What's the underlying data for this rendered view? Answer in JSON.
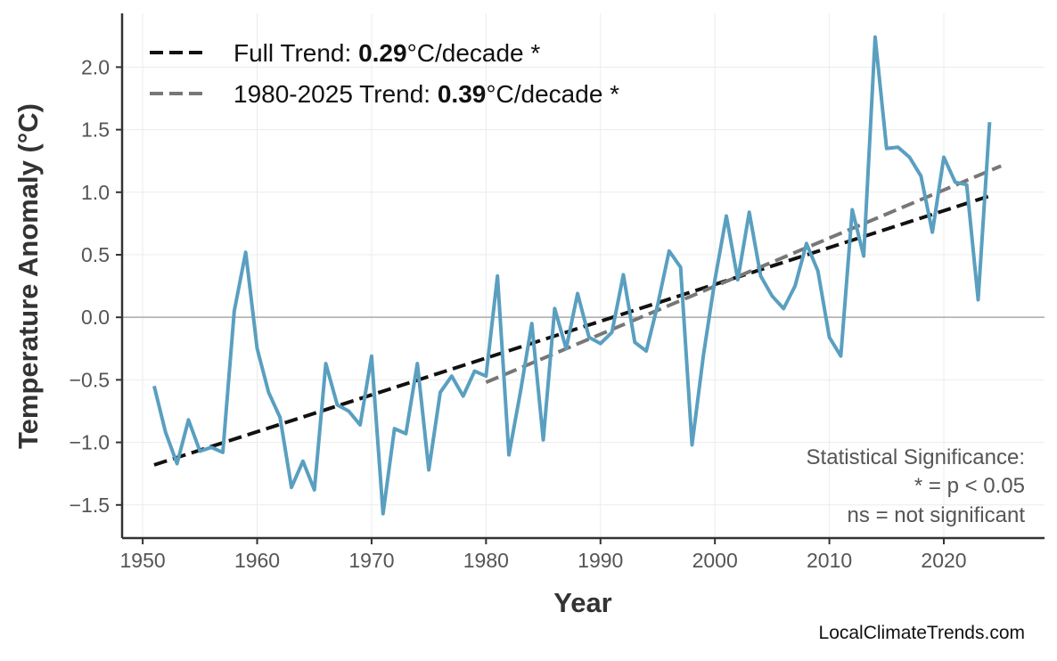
{
  "chart_data": {
    "type": "line",
    "xlabel": "Year",
    "ylabel": "Temperature Anomaly (°C)",
    "xlim": [
      1948.2,
      2028.8
    ],
    "ylim": [
      -1.765,
      2.43
    ],
    "xticks": [
      1950,
      1960,
      1970,
      1980,
      1990,
      2000,
      2010,
      2020
    ],
    "yticks": [
      -1.5,
      -1.0,
      -0.5,
      0.0,
      0.5,
      1.0,
      1.5,
      2.0
    ],
    "ytick_labels": [
      "−1.5",
      "−1.0",
      "−0.5",
      "0.0",
      "0.5",
      "1.0",
      "1.5",
      "2.0"
    ],
    "grid": true,
    "zero_line": true,
    "series": [
      {
        "color": "#5a9fc0",
        "x": [
          1951,
          1952,
          1953,
          1954,
          1955,
          1956,
          1957,
          1958,
          1959,
          1960,
          1961,
          1962,
          1963,
          1964,
          1965,
          1966,
          1967,
          1968,
          1969,
          1970,
          1971,
          1972,
          1973,
          1974,
          1975,
          1976,
          1977,
          1978,
          1979,
          1980,
          1981,
          1982,
          1983,
          1984,
          1985,
          1986,
          1987,
          1988,
          1989,
          1990,
          1991,
          1992,
          1993,
          1994,
          1995,
          1996,
          1997,
          1998,
          1999,
          2000,
          2001,
          2002,
          2003,
          2004,
          2005,
          2006,
          2007,
          2008,
          2009,
          2010,
          2011,
          2012,
          2013,
          2014,
          2015,
          2016,
          2017,
          2018,
          2019,
          2020,
          2021,
          2022,
          2023,
          2024
        ],
        "y": [
          -0.55,
          -0.92,
          -1.17,
          -0.82,
          -1.07,
          -1.04,
          -1.08,
          0.05,
          0.52,
          -0.25,
          -0.6,
          -0.8,
          -1.36,
          -1.15,
          -1.38,
          -0.37,
          -0.7,
          -0.75,
          -0.86,
          -0.31,
          -1.57,
          -0.89,
          -0.93,
          -0.37,
          -1.22,
          -0.6,
          -0.47,
          -0.63,
          -0.43,
          -0.47,
          0.33,
          -1.1,
          -0.6,
          -0.05,
          -0.98,
          0.07,
          -0.25,
          0.19,
          -0.16,
          -0.21,
          -0.12,
          0.34,
          -0.2,
          -0.27,
          0.1,
          0.53,
          0.4,
          -1.02,
          -0.3,
          0.3,
          0.81,
          0.3,
          0.84,
          0.33,
          0.17,
          0.07,
          0.25,
          0.59,
          0.37,
          -0.16,
          -0.31,
          0.86,
          0.49,
          2.24,
          1.35,
          1.36,
          1.28,
          1.13,
          0.68,
          1.28,
          1.08,
          1.06,
          0.14,
          1.56
        ]
      }
    ],
    "trends": [
      {
        "label_prefix": "Full Trend: ",
        "rate": "0.29",
        "label_suffix": "°C/decade *",
        "x": [
          1951,
          2024
        ],
        "y": [
          -1.18,
          0.97
        ],
        "color": "#111111"
      },
      {
        "label_prefix": "1980-2025 Trend: ",
        "rate": "0.39",
        "label_suffix": "°C/decade *",
        "x": [
          1980,
          2025
        ],
        "y": [
          -0.52,
          1.21
        ],
        "color": "#777777"
      }
    ],
    "legend_position": "top-left",
    "annotation": [
      "Statistical Significance:",
      "* = p < 0.05",
      "ns = not significant"
    ]
  },
  "watermark": "LocalClimateTrends.com"
}
